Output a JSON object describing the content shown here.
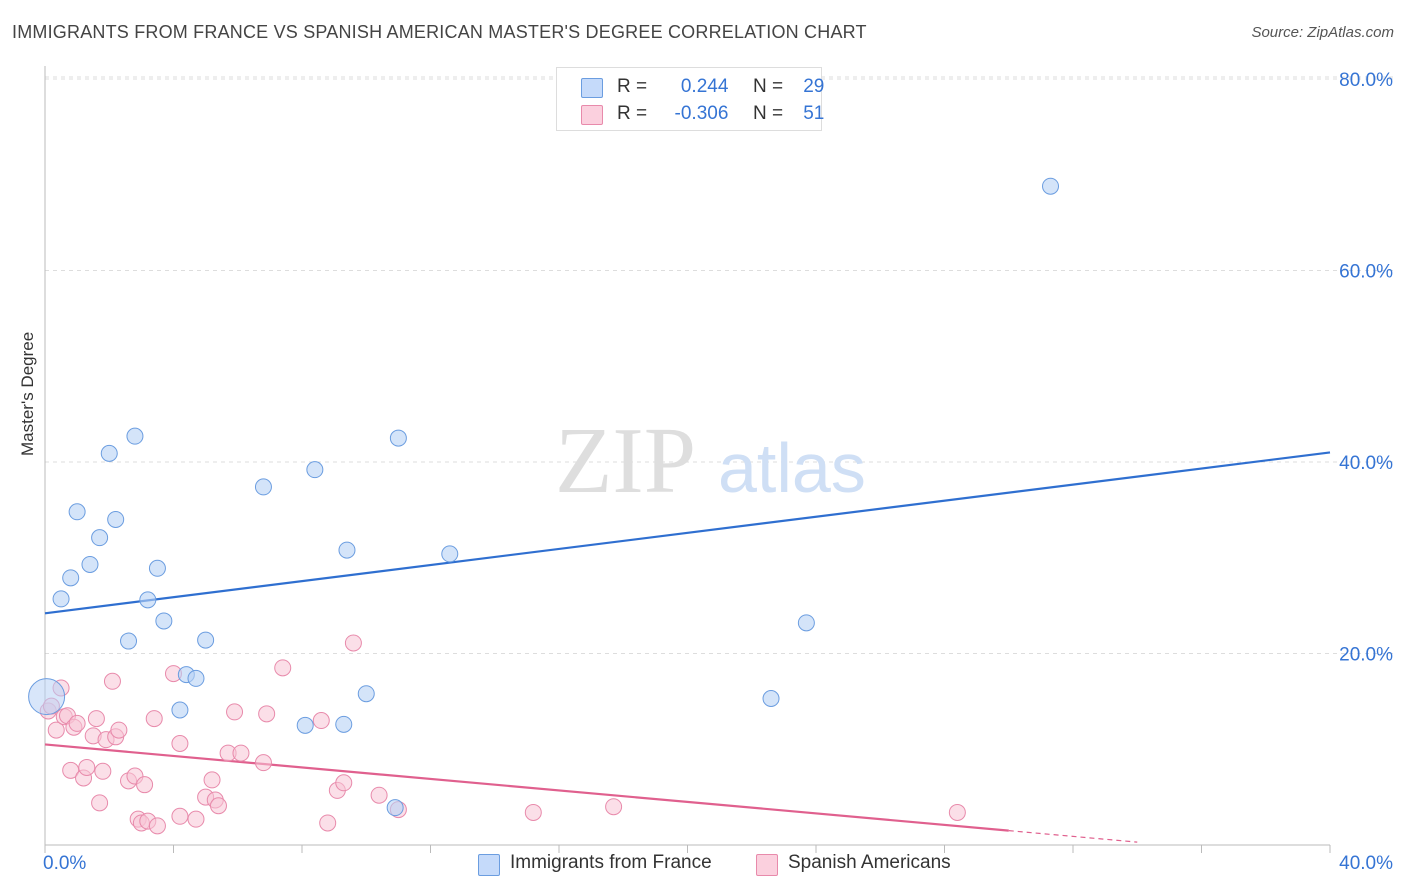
{
  "title": "IMMIGRANTS FROM FRANCE VS SPANISH AMERICAN MASTER'S DEGREE CORRELATION CHART",
  "source": "Source: ZipAtlas.com",
  "watermark": {
    "zip": "ZIP",
    "atlas": "atlas"
  },
  "legend": {
    "rows": [
      {
        "r_label": "R =",
        "r_value": "0.244",
        "n_label": "N =",
        "n_value": "29"
      },
      {
        "r_label": "R =",
        "r_value": "-0.306",
        "n_label": "N =",
        "n_value": "51"
      }
    ]
  },
  "colors": {
    "blue_fill": "#b8d2f5",
    "blue_stroke": "#6b9de0",
    "blue_line": "#2f6fd0",
    "pink_fill": "#f8c4d6",
    "pink_stroke": "#e88aab",
    "pink_line": "#e0608e",
    "axis_text": "#3574d4",
    "grid": "#dddddd"
  },
  "chart_data": {
    "type": "scatter",
    "title": "IMMIGRANTS FROM FRANCE VS SPANISH AMERICAN MASTER'S DEGREE CORRELATION CHART",
    "xlabel": "",
    "ylabel": "Master's Degree",
    "xlim": [
      0,
      40
    ],
    "ylim": [
      0,
      80
    ],
    "x_tick_labels": [
      "0.0%",
      "40.0%"
    ],
    "y_ticks": [
      20,
      40,
      60,
      80
    ],
    "y_tick_labels": [
      "20.0%",
      "40.0%",
      "60.0%",
      "80.0%"
    ],
    "series": [
      {
        "name": "Immigrants from France",
        "color": "blue",
        "r": 0.244,
        "n": 29,
        "trend": {
          "x": [
            0,
            40
          ],
          "y": [
            24.2,
            41.0
          ]
        },
        "points": [
          {
            "x": 0.05,
            "y": 15.5,
            "big": true
          },
          {
            "x": 0.5,
            "y": 25.7
          },
          {
            "x": 0.8,
            "y": 27.9
          },
          {
            "x": 1.0,
            "y": 34.8
          },
          {
            "x": 1.4,
            "y": 29.3
          },
          {
            "x": 1.7,
            "y": 32.1
          },
          {
            "x": 2.0,
            "y": 40.9
          },
          {
            "x": 2.2,
            "y": 34.0
          },
          {
            "x": 2.6,
            "y": 21.3
          },
          {
            "x": 2.8,
            "y": 42.7
          },
          {
            "x": 3.2,
            "y": 25.6
          },
          {
            "x": 3.5,
            "y": 28.9
          },
          {
            "x": 3.7,
            "y": 23.4
          },
          {
            "x": 4.2,
            "y": 14.1
          },
          {
            "x": 4.4,
            "y": 17.8
          },
          {
            "x": 4.7,
            "y": 17.4
          },
          {
            "x": 5.0,
            "y": 21.4
          },
          {
            "x": 6.8,
            "y": 37.4
          },
          {
            "x": 8.1,
            "y": 12.5
          },
          {
            "x": 8.4,
            "y": 39.2
          },
          {
            "x": 9.3,
            "y": 12.6
          },
          {
            "x": 9.4,
            "y": 30.8
          },
          {
            "x": 10.0,
            "y": 15.8
          },
          {
            "x": 10.9,
            "y": 3.9
          },
          {
            "x": 11.0,
            "y": 42.5
          },
          {
            "x": 12.6,
            "y": 30.4
          },
          {
            "x": 22.6,
            "y": 15.3
          },
          {
            "x": 23.7,
            "y": 23.2
          },
          {
            "x": 31.3,
            "y": 68.8
          }
        ]
      },
      {
        "name": "Spanish Americans",
        "color": "pink",
        "r": -0.306,
        "n": 51,
        "trend": {
          "x": [
            0,
            30.0
          ],
          "y": [
            10.5,
            1.5
          ]
        },
        "trend_dashed": {
          "x": [
            30.0,
            34.0
          ],
          "y": [
            1.5,
            0.3
          ]
        },
        "points": [
          {
            "x": 0.1,
            "y": 14.0
          },
          {
            "x": 0.2,
            "y": 14.5
          },
          {
            "x": 0.35,
            "y": 12.0
          },
          {
            "x": 0.5,
            "y": 16.4
          },
          {
            "x": 0.6,
            "y": 13.4
          },
          {
            "x": 0.7,
            "y": 13.5
          },
          {
            "x": 0.8,
            "y": 7.8
          },
          {
            "x": 0.9,
            "y": 12.3
          },
          {
            "x": 1.0,
            "y": 12.7
          },
          {
            "x": 1.2,
            "y": 7.0
          },
          {
            "x": 1.3,
            "y": 8.1
          },
          {
            "x": 1.5,
            "y": 11.4
          },
          {
            "x": 1.6,
            "y": 13.2
          },
          {
            "x": 1.7,
            "y": 4.4
          },
          {
            "x": 1.8,
            "y": 7.7
          },
          {
            "x": 1.9,
            "y": 11.0
          },
          {
            "x": 2.1,
            "y": 17.1
          },
          {
            "x": 2.2,
            "y": 11.3
          },
          {
            "x": 2.3,
            "y": 12.0
          },
          {
            "x": 2.6,
            "y": 6.7
          },
          {
            "x": 2.8,
            "y": 7.2
          },
          {
            "x": 2.9,
            "y": 2.7
          },
          {
            "x": 3.0,
            "y": 2.3
          },
          {
            "x": 3.1,
            "y": 6.3
          },
          {
            "x": 3.2,
            "y": 2.5
          },
          {
            "x": 3.4,
            "y": 13.2
          },
          {
            "x": 3.5,
            "y": 2.0
          },
          {
            "x": 4.0,
            "y": 17.9
          },
          {
            "x": 4.2,
            "y": 3.0
          },
          {
            "x": 4.2,
            "y": 10.6
          },
          {
            "x": 4.7,
            "y": 2.7
          },
          {
            "x": 5.0,
            "y": 5.0
          },
          {
            "x": 5.2,
            "y": 6.8
          },
          {
            "x": 5.3,
            "y": 4.7
          },
          {
            "x": 5.4,
            "y": 4.1
          },
          {
            "x": 5.7,
            "y": 9.6
          },
          {
            "x": 5.9,
            "y": 13.9
          },
          {
            "x": 6.1,
            "y": 9.6
          },
          {
            "x": 6.8,
            "y": 8.6
          },
          {
            "x": 6.9,
            "y": 13.7
          },
          {
            "x": 7.4,
            "y": 18.5
          },
          {
            "x": 8.6,
            "y": 13.0
          },
          {
            "x": 8.8,
            "y": 2.3
          },
          {
            "x": 9.1,
            "y": 5.7
          },
          {
            "x": 9.3,
            "y": 6.5
          },
          {
            "x": 9.6,
            "y": 21.1
          },
          {
            "x": 10.4,
            "y": 5.2
          },
          {
            "x": 11.0,
            "y": 3.7
          },
          {
            "x": 15.2,
            "y": 3.4
          },
          {
            "x": 17.7,
            "y": 4.0
          },
          {
            "x": 28.4,
            "y": 3.4
          }
        ]
      }
    ]
  },
  "bottom_legend": [
    {
      "label": "Immigrants from France"
    },
    {
      "label": "Spanish Americans"
    }
  ]
}
